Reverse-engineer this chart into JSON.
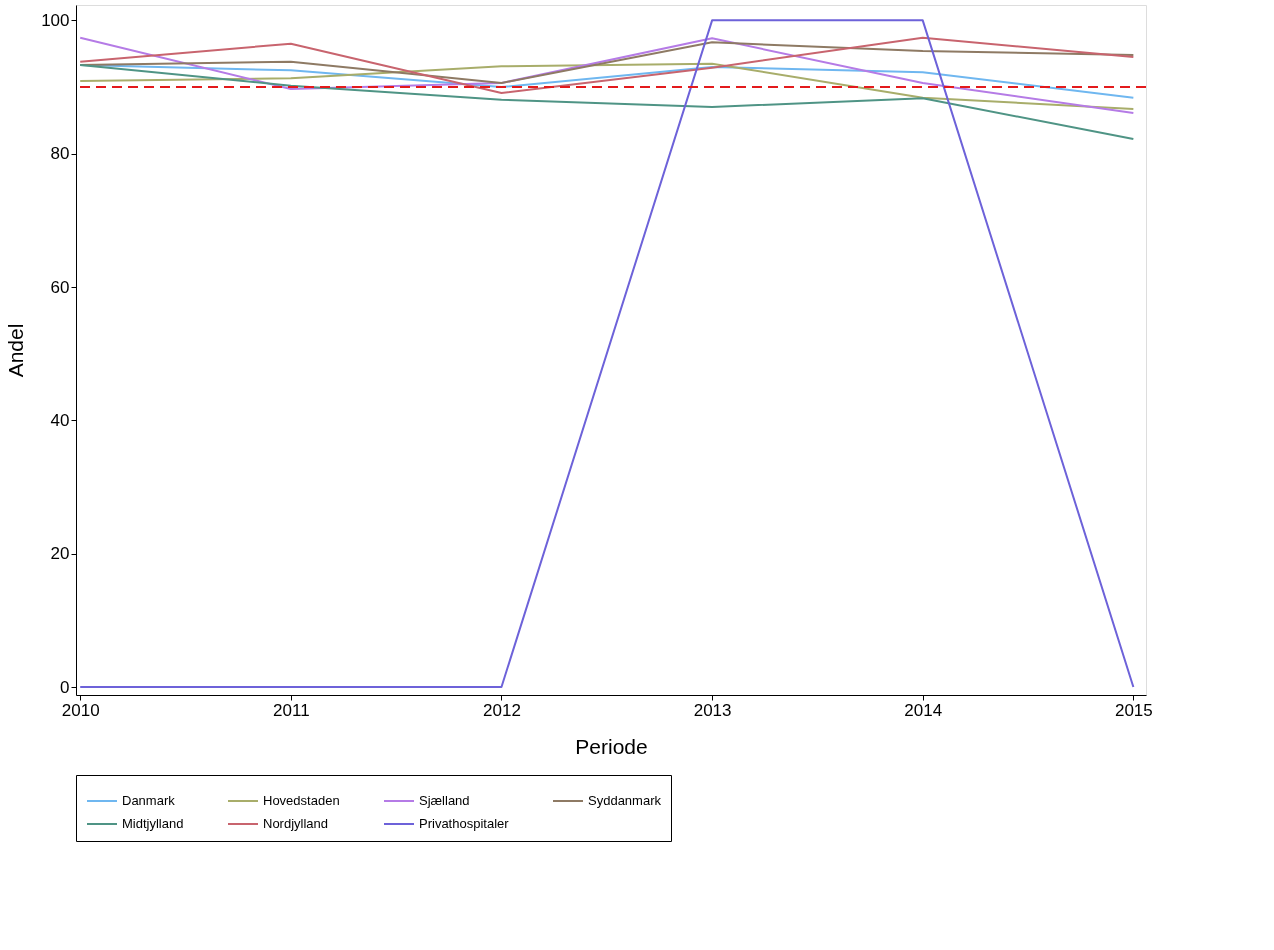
{
  "chart_data": {
    "type": "line",
    "xlabel": "Periode",
    "ylabel": "Andel",
    "x": [
      2010,
      2011,
      2012,
      2013,
      2014,
      2015
    ],
    "series": [
      {
        "name": "Danmark",
        "color": "#6fb7f0",
        "values": [
          93.3,
          92.5,
          90.0,
          93.0,
          92.2,
          88.4
        ]
      },
      {
        "name": "Hovedstaden",
        "color": "#a8ad6a",
        "values": [
          90.9,
          91.3,
          93.1,
          93.5,
          88.4,
          86.7
        ]
      },
      {
        "name": "Sjælland",
        "color": "#b57be6",
        "values": [
          97.4,
          89.7,
          90.6,
          97.3,
          90.6,
          86.1
        ]
      },
      {
        "name": "Syddanmark",
        "color": "#8e7a64",
        "values": [
          93.3,
          93.8,
          90.6,
          96.7,
          95.4,
          94.8
        ]
      },
      {
        "name": "Midtjylland",
        "color": "#4f9485",
        "values": [
          93.3,
          90.2,
          88.1,
          87.0,
          88.3,
          82.2
        ]
      },
      {
        "name": "Nordjylland",
        "color": "#c8646e",
        "values": [
          93.8,
          96.5,
          89.1,
          92.9,
          97.4,
          94.5
        ]
      },
      {
        "name": "Privathospitaler",
        "color": "#6d62d9",
        "values": [
          0,
          0,
          0,
          100,
          100,
          0
        ]
      }
    ],
    "xlim": [
      2009.98,
      2015.06
    ],
    "xticks": [
      2010,
      2011,
      2012,
      2013,
      2014,
      2015
    ],
    "ylim": [
      -1.2,
      102.3
    ],
    "yticks": [
      0,
      20,
      40,
      60,
      80,
      100
    ],
    "ref_lines": [
      {
        "axis": "y",
        "value": 90,
        "color": "#e31a1c",
        "line_style": "dashed"
      }
    ],
    "grid": false,
    "legend": "bottom",
    "marker": "none",
    "line_style": "solid"
  }
}
